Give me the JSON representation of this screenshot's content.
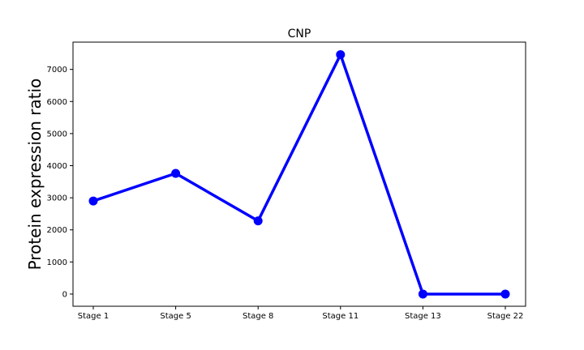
{
  "chart_data": {
    "type": "line",
    "title": "CNP",
    "xlabel": "",
    "ylabel": "Protein expression ratio",
    "categories": [
      "Stage 1",
      "Stage 5",
      "Stage 8",
      "Stage 11",
      "Stage 13",
      "Stage 22"
    ],
    "series": [
      {
        "values": [
          2900,
          3760,
          2280,
          7460,
          0,
          0
        ]
      }
    ],
    "yticks": [
      0,
      1000,
      2000,
      3000,
      4000,
      5000,
      6000,
      7000
    ],
    "ylim": [
      -380,
      7850
    ],
    "grid": false,
    "line_color": "#0000ff"
  }
}
